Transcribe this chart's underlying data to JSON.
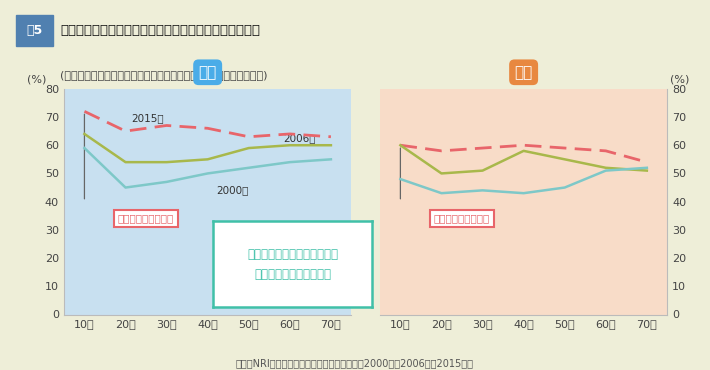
{
  "title_fig_num": "5",
  "title_main": "「有名な大学や学校に通った方が、有利になる」の推移",
  "title_sub": "(「そう思う」「どちらかといえばそう思う」の合計、男女・年代別)",
  "source": "出典：NRI「生活者１万人アンケート調査」（2000年、2006年、2015年）",
  "categories": [
    "10代",
    "20代",
    "30代",
    "40代",
    "50代",
    "60代",
    "70代"
  ],
  "male_2015": [
    72,
    65,
    67,
    66,
    63,
    64,
    63
  ],
  "male_2006": [
    64,
    54,
    54,
    55,
    59,
    60,
    60
  ],
  "male_2000": [
    59,
    45,
    47,
    50,
    52,
    54,
    55
  ],
  "female_2015": [
    60,
    58,
    59,
    60,
    59,
    58,
    54
  ],
  "female_2006": [
    60,
    50,
    51,
    58,
    55,
    52,
    51
  ],
  "female_2000": [
    48,
    43,
    44,
    43,
    45,
    51,
    52
  ],
  "color_2015": "#E8656A",
  "color_2006": "#A8B84B",
  "color_2000": "#7EC8C8",
  "male_bg": "#C8E0F0",
  "female_bg": "#F8DCC8",
  "male_label": "男性",
  "female_label": "女性",
  "male_label_color": "#4AACE8",
  "female_label_color": "#E88840",
  "digital_label": "デジタルネイティブ",
  "year_2015": "2015年",
  "year_2006": "2006年",
  "year_2000": "2000年",
  "annotation_text": "強まる学歴・肩書主義。特に\n若年層でその傾向が強い",
  "annotation_color": "#40C0A8",
  "fig5_box_color": "#5080B0",
  "bg_color": "#EEEED8",
  "pct_label": "(%)",
  "ylim": [
    0,
    80
  ],
  "yticks": [
    0,
    10,
    20,
    30,
    40,
    50,
    60,
    70,
    80
  ]
}
